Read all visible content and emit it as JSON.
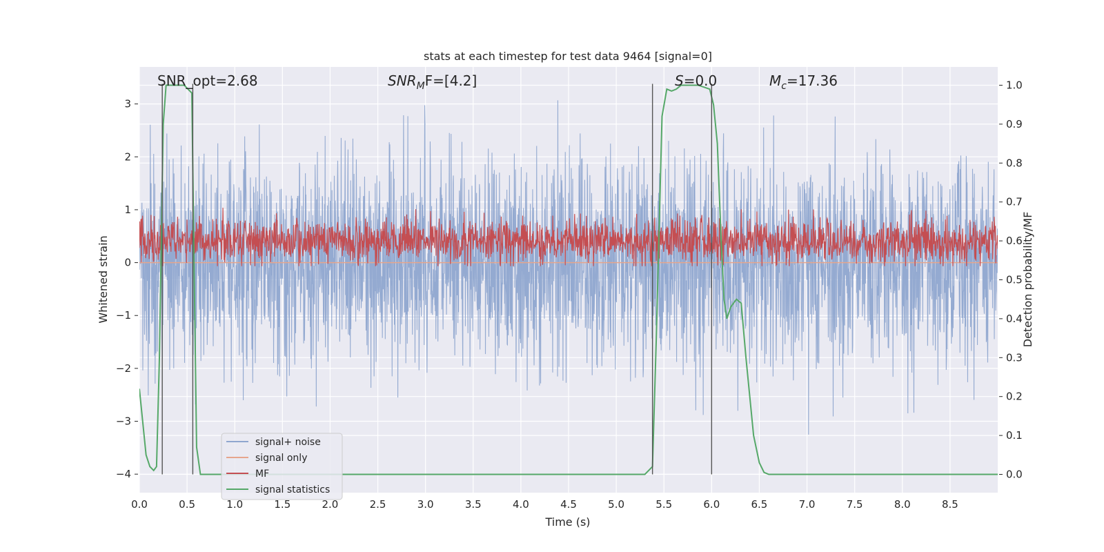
{
  "chart_data": {
    "type": "line",
    "title": "stats at each timestep for test data 9464 [signal=0]",
    "xlabel": "Time (s)",
    "ylabel": "Whitened strain",
    "ylabel_right": "Detection probability/MF",
    "xlim": [
      0.0,
      9.0
    ],
    "ylim": [
      -4.35,
      3.7
    ],
    "ylim_right": [
      -0.047,
      1.047
    ],
    "xticks": [
      "0.0",
      "0.5",
      "1.0",
      "1.5",
      "2.0",
      "2.5",
      "3.0",
      "3.5",
      "4.0",
      "4.5",
      "5.0",
      "5.5",
      "6.0",
      "6.5",
      "7.0",
      "7.5",
      "8.0",
      "8.5"
    ],
    "yticks": [
      "−4",
      "−3",
      "−2",
      "−1",
      "0",
      "1",
      "2",
      "3"
    ],
    "yticks_right": [
      "0.0",
      "0.1",
      "0.2",
      "0.3",
      "0.4",
      "0.5",
      "0.6",
      "0.7",
      "0.8",
      "0.9",
      "1.0"
    ],
    "annotations": {
      "snr_opt": "SNR_opt=2.68",
      "snr_mf_label": "SNR",
      "snr_mf_sub": "M",
      "snr_mf_tail": "F=[4.2]",
      "s_label": "S",
      "s_tail": "=0.0",
      "mc_label": "M",
      "mc_sub": "c",
      "mc_tail": "=17.36"
    },
    "vertical_lines_x": [
      0.24,
      0.56,
      5.38,
      6.0
    ],
    "series": [
      {
        "name": "signal+ noise",
        "color": "#8fa6cf",
        "kind": "noise",
        "amplitude_sd": 1.0
      },
      {
        "name": "signal only",
        "color": "#e6a58c",
        "kind": "flat",
        "value": 0.0
      },
      {
        "name": "MF",
        "color": "#c44e52",
        "kind": "mf",
        "mean_right": 0.6
      },
      {
        "name": "signal statistics",
        "color": "#55a868",
        "axis": "right",
        "x": [
          0.0,
          0.07,
          0.11,
          0.15,
          0.18,
          0.21,
          0.25,
          0.28,
          0.31,
          0.36,
          0.42,
          0.47,
          0.51,
          0.55,
          0.57,
          0.6,
          0.64,
          0.68,
          0.72,
          1.0,
          2.0,
          3.0,
          4.0,
          5.0,
          5.3,
          5.38,
          5.42,
          5.48,
          5.53,
          5.58,
          5.63,
          5.68,
          5.74,
          5.8,
          5.86,
          5.92,
          5.98,
          6.02,
          6.06,
          6.1,
          6.13,
          6.16,
          6.2,
          6.26,
          6.31,
          6.36,
          6.44,
          6.5,
          6.55,
          6.6,
          7.0,
          8.0,
          9.0
        ],
        "y": [
          0.22,
          0.05,
          0.02,
          0.01,
          0.02,
          0.3,
          0.9,
          1.0,
          1.0,
          1.0,
          1.0,
          1.0,
          0.99,
          0.98,
          0.6,
          0.07,
          0.0,
          0.0,
          0.0,
          0.0,
          0.0,
          0.0,
          0.0,
          0.0,
          0.0,
          0.02,
          0.35,
          0.92,
          0.99,
          0.985,
          0.99,
          1.0,
          1.0,
          1.0,
          1.0,
          0.995,
          0.99,
          0.95,
          0.85,
          0.6,
          0.45,
          0.4,
          0.43,
          0.45,
          0.44,
          0.3,
          0.1,
          0.03,
          0.005,
          0.0,
          0.0,
          0.0,
          0.0
        ]
      }
    ],
    "legend_position": "lower-left"
  }
}
